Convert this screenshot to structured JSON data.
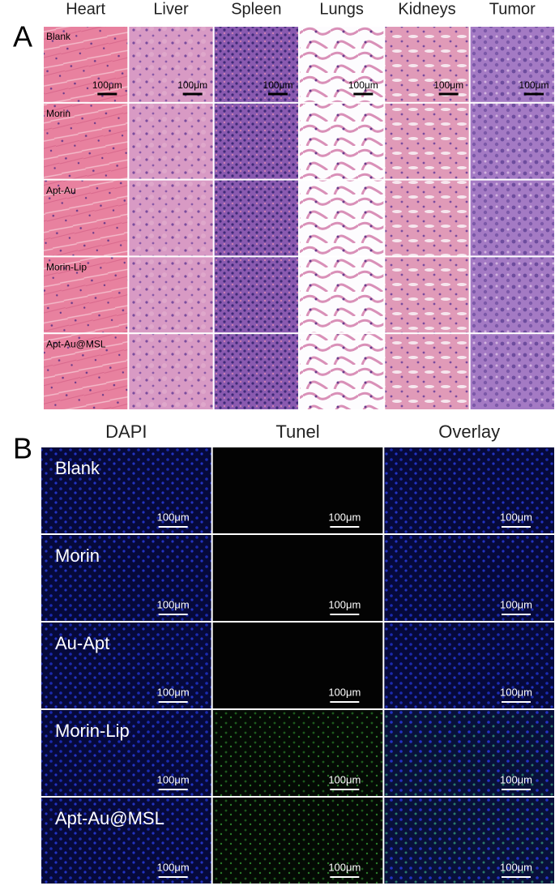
{
  "panel_a": {
    "label": "A",
    "columns": [
      "Heart",
      "Liver",
      "Spleen",
      "Lungs",
      "Kidneys",
      "Tumor"
    ],
    "rows": [
      "Blank",
      "Morin",
      "Apt-Au",
      "Morin-Lip",
      "Apt-Au@MSL"
    ],
    "scale_bar": "100μm"
  },
  "panel_b": {
    "label": "B",
    "columns": [
      "DAPI",
      "Tunel",
      "Overlay"
    ],
    "rows": [
      "Blank",
      "Morin",
      "Au-Apt",
      "Morin-Lip",
      "Apt-Au@MSL"
    ],
    "scale_bar": "100μm"
  }
}
